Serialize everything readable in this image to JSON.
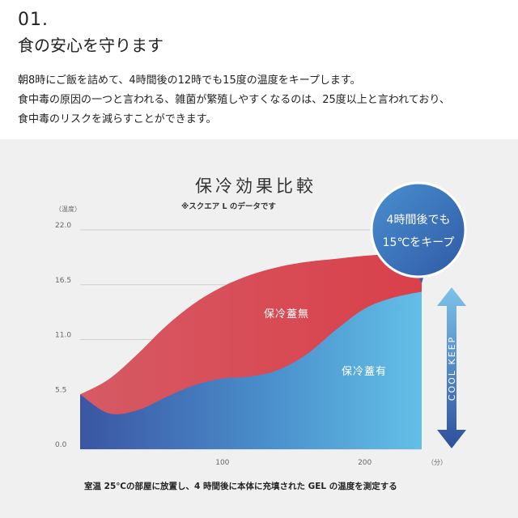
{
  "header": {
    "number": "01.",
    "title": "食の安心を守ります",
    "lines": [
      "朝8時にご飯を詰めて、4時間後の12時でも15度の温度をキープします。",
      "食中毒の原因の一つと言われる、雑菌が繁殖しやすくなるのは、25度以上と言われており、",
      "食中毒のリスクを減らすことができます。"
    ]
  },
  "colors": {
    "red": "#d9474f",
    "blue_dark": "#3b55a3",
    "blue_light": "#5fb9e3",
    "badge": "#3f6fb3",
    "arrow_dark": "#2e4f9c",
    "arrow_light": "#7dc3e8"
  },
  "chart_data": {
    "type": "area",
    "title": "保冷効果比較",
    "subtitle": "※スクエア L のデータです",
    "ylabel": "（温度）",
    "xlabel": "（分）",
    "ylim": [
      0,
      22
    ],
    "xlim": [
      0,
      240
    ],
    "yticks": [
      "22.0",
      "16.5",
      "11.0",
      "5.5",
      "0.0"
    ],
    "xticks": [
      "100",
      "200"
    ],
    "grid": true,
    "series": [
      {
        "name": "保冷蓋無",
        "x": [
          0,
          20,
          40,
          60,
          80,
          100,
          120,
          140,
          160,
          180,
          200,
          220,
          240
        ],
        "values": [
          5.5,
          7.0,
          9.5,
          12.3,
          14.6,
          16.3,
          17.5,
          18.3,
          18.8,
          19.1,
          19.4,
          19.6,
          19.8
        ]
      },
      {
        "name": "保冷蓋有",
        "x": [
          0,
          20,
          40,
          60,
          80,
          100,
          120,
          140,
          160,
          180,
          200,
          220,
          240
        ],
        "values": [
          5.5,
          3.6,
          3.9,
          5.2,
          6.4,
          7.1,
          7.3,
          8.0,
          9.6,
          12.0,
          14.1,
          15.2,
          15.8
        ]
      }
    ],
    "badge": {
      "line1": "4時間後でも",
      "line2": "15℃をキープ"
    },
    "arrow_label": "COOL KEEP",
    "footnote": "室温 25℃の部屋に放置し、4 時間後に本体に充填された GEL の温度を測定する"
  }
}
